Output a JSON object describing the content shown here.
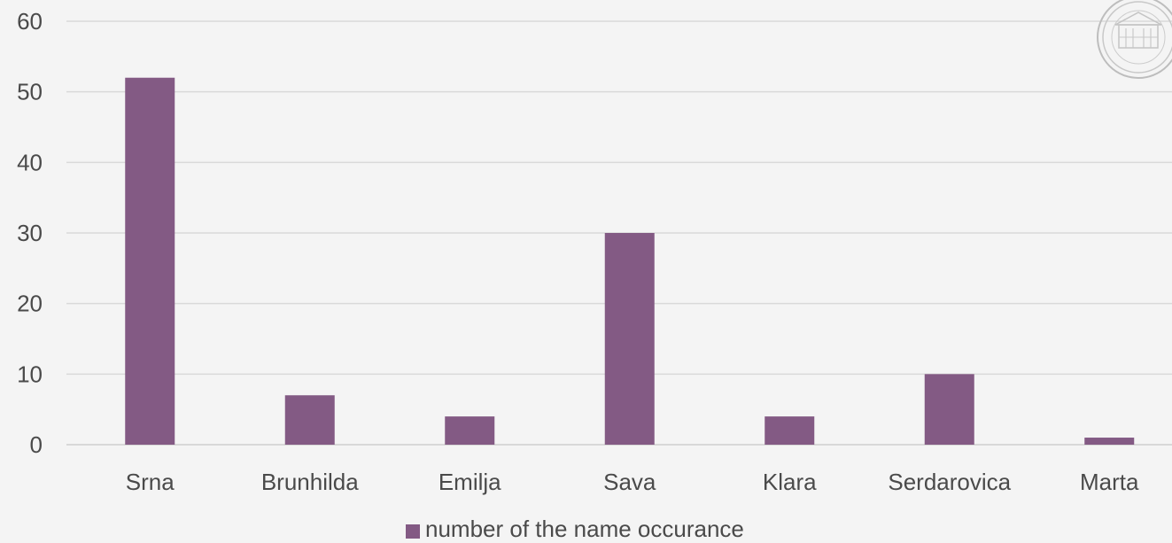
{
  "chart_data": {
    "type": "bar",
    "categories": [
      "Srna",
      "Brunhilda",
      "Emilja",
      "Sava",
      "Klara",
      "Serdarovica",
      "Marta"
    ],
    "series": [
      {
        "name": "number of the name occurance",
        "values": [
          52,
          7,
          4,
          30,
          4,
          10,
          1
        ],
        "color": "#835a84"
      }
    ],
    "ylim": [
      0,
      60
    ],
    "yticks": [
      0,
      10,
      20,
      30,
      40,
      50,
      60
    ],
    "grid": true,
    "legend_position": "bottom",
    "logo": "university-seal-icon"
  }
}
